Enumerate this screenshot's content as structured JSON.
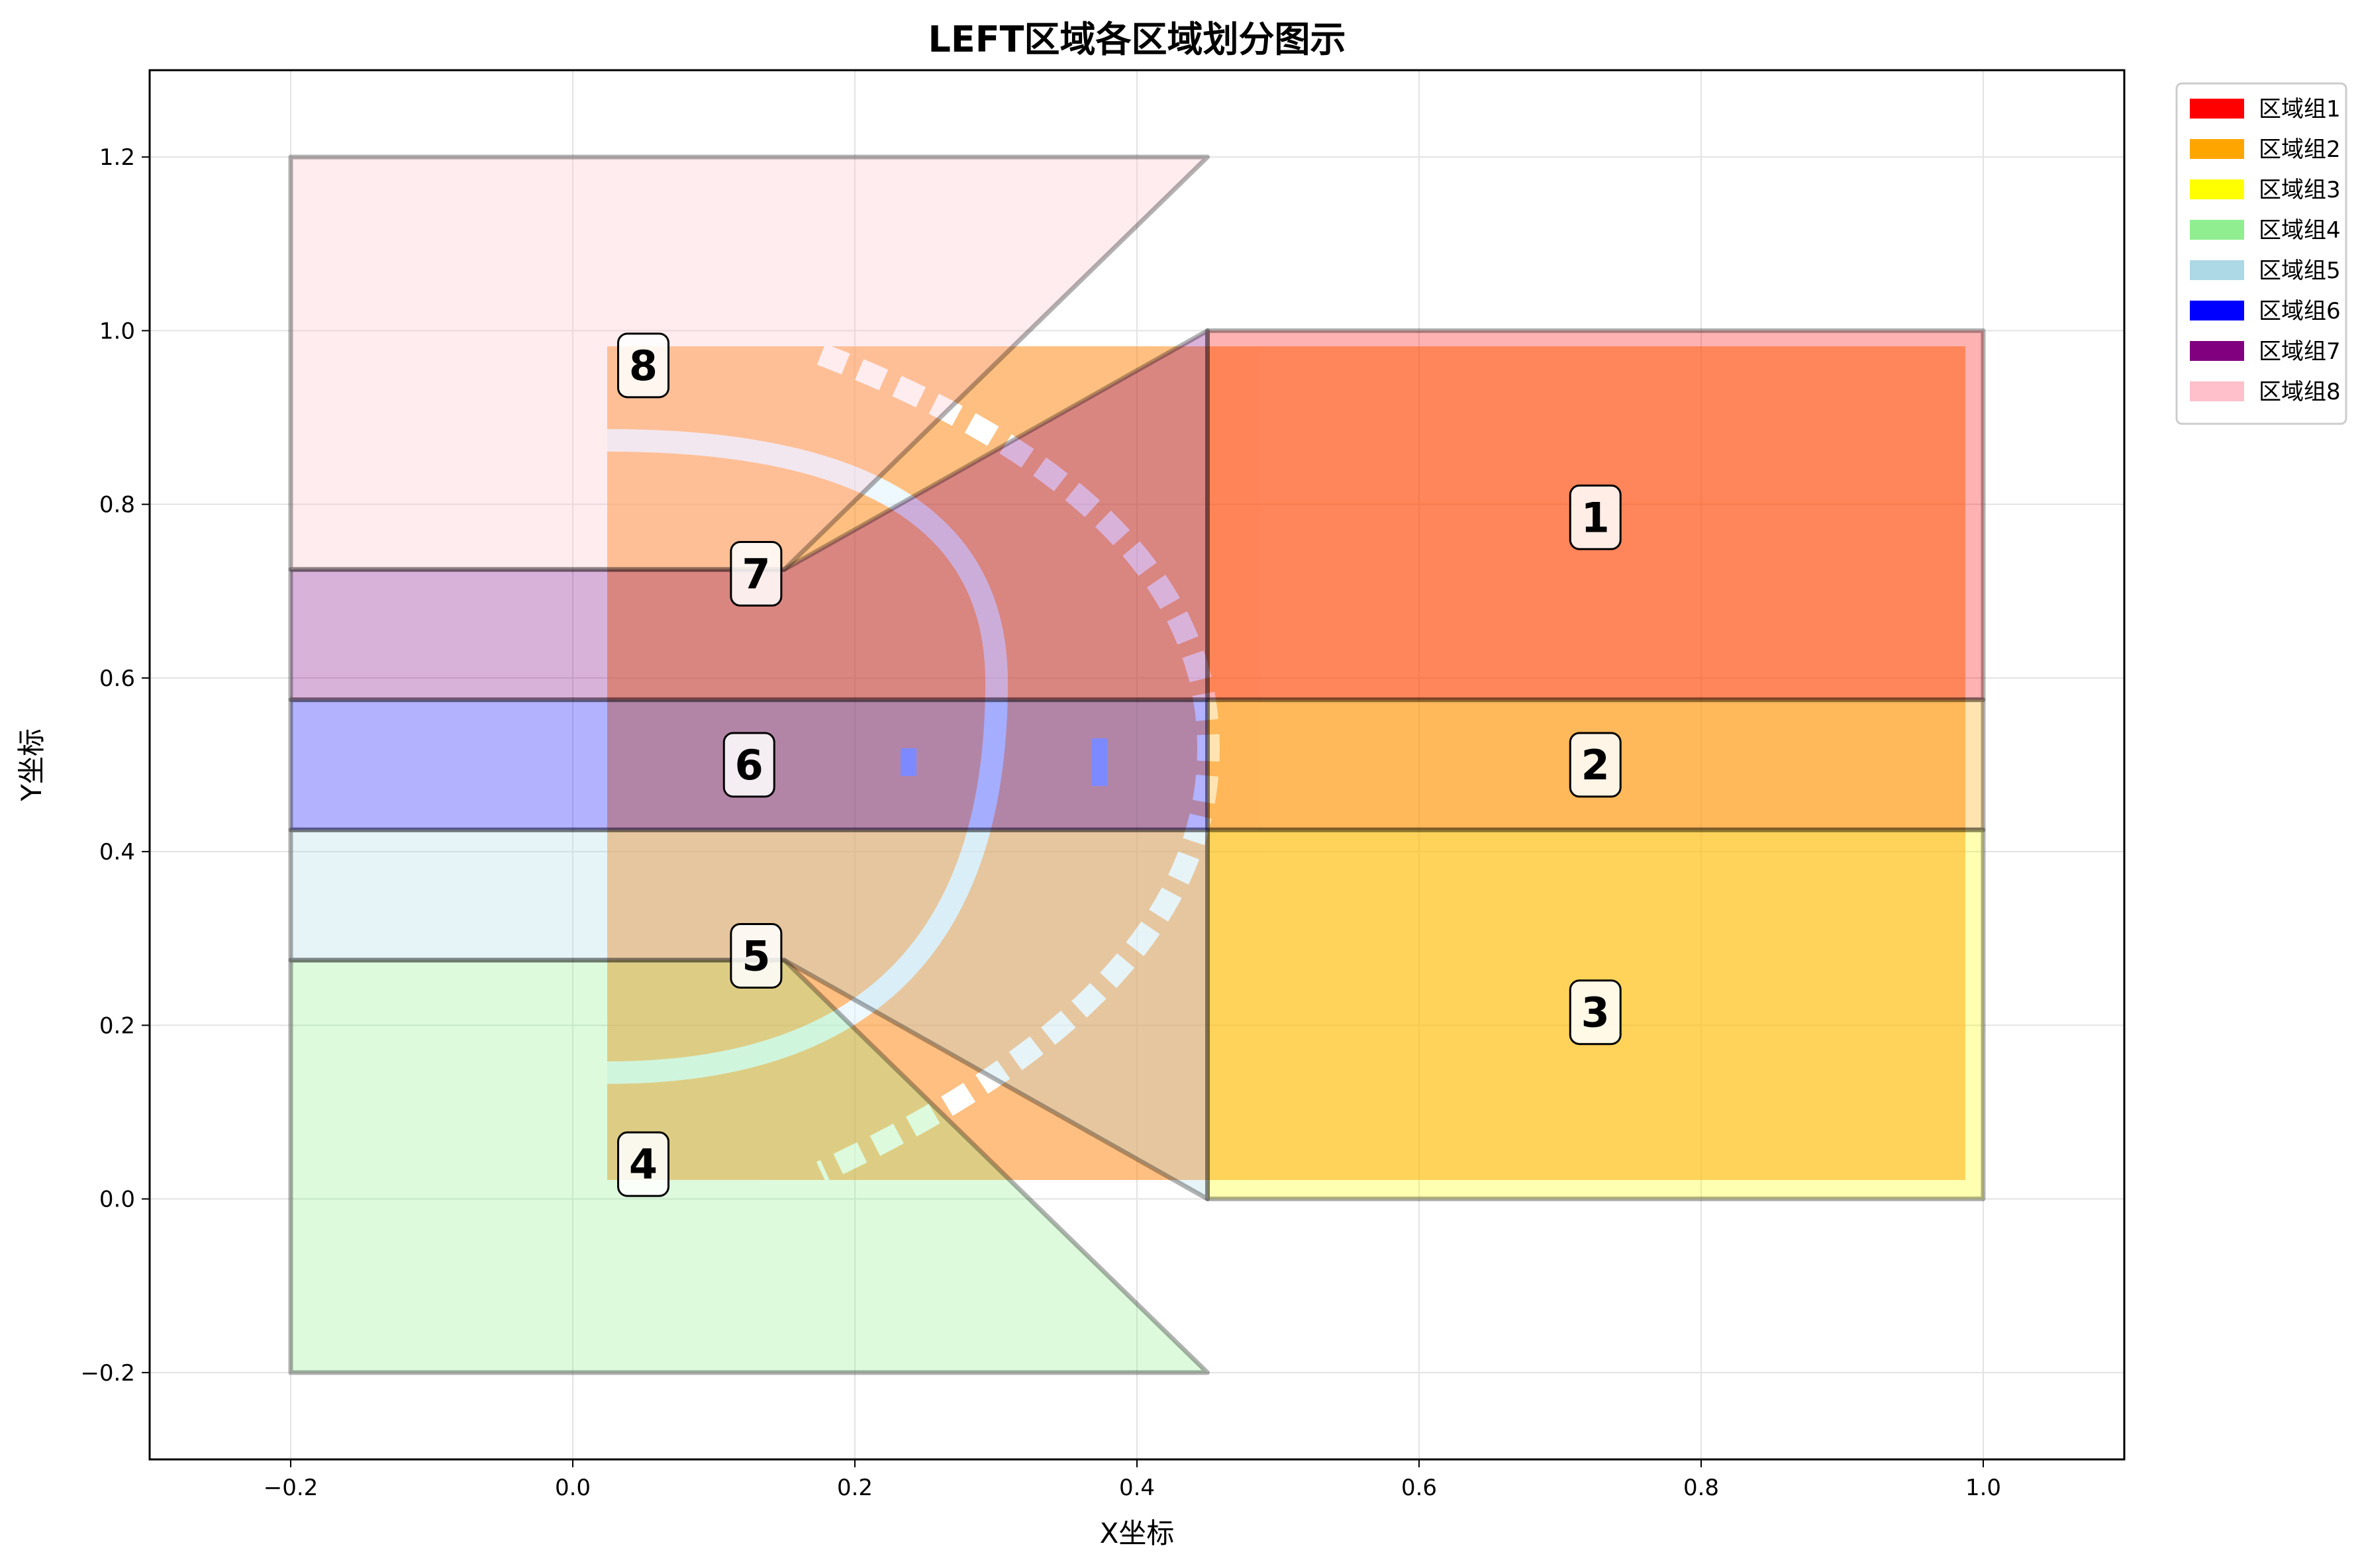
{
  "chart_data": {
    "type": "area",
    "title": "LEFT区域各区域划分图示",
    "xlabel": "X坐标",
    "ylabel": "Y坐标",
    "xlim": [
      -0.3,
      1.1
    ],
    "ylim": [
      -0.3,
      1.3
    ],
    "xticks": [
      -0.2,
      0.0,
      0.2,
      0.4,
      0.6,
      0.8,
      1.0
    ],
    "xtick_labels": [
      "−0.2",
      "0.0",
      "0.2",
      "0.4",
      "0.6",
      "0.8",
      "1.0"
    ],
    "yticks": [
      -0.2,
      0.0,
      0.2,
      0.4,
      0.6,
      0.8,
      1.0,
      1.2
    ],
    "ytick_labels": [
      "−0.2",
      "0.0",
      "0.2",
      "0.4",
      "0.6",
      "0.8",
      "1.0",
      "1.2"
    ],
    "grid": true,
    "legend_position": "outside-top-right",
    "legend": [
      {
        "label": "区域组1",
        "color": "#ff0000"
      },
      {
        "label": "区域组2",
        "color": "#ffa500"
      },
      {
        "label": "区域组3",
        "color": "#ffff00"
      },
      {
        "label": "区域组4",
        "color": "#90ee90"
      },
      {
        "label": "区域组5",
        "color": "#add8e6"
      },
      {
        "label": "区域组6",
        "color": "#0000ff"
      },
      {
        "label": "区域组7",
        "color": "#800080"
      },
      {
        "label": "区域组8",
        "color": "#ffc0cb"
      }
    ],
    "regions": [
      {
        "id": "1",
        "color": "#ff0000",
        "label_pos": [
          0.725,
          0.785
        ],
        "polygon": [
          [
            0.45,
            0.575
          ],
          [
            1.0,
            0.575
          ],
          [
            1.0,
            1.0
          ],
          [
            0.45,
            1.0
          ]
        ]
      },
      {
        "id": "2",
        "color": "#ffa500",
        "label_pos": [
          0.725,
          0.5
        ],
        "polygon": [
          [
            0.45,
            0.425
          ],
          [
            1.0,
            0.425
          ],
          [
            1.0,
            0.575
          ],
          [
            0.45,
            0.575
          ]
        ]
      },
      {
        "id": "3",
        "color": "#ffff00",
        "label_pos": [
          0.725,
          0.215
        ],
        "polygon": [
          [
            0.45,
            0.0
          ],
          [
            1.0,
            0.0
          ],
          [
            1.0,
            0.425
          ],
          [
            0.45,
            0.425
          ]
        ]
      },
      {
        "id": "4",
        "color": "#90ee90",
        "label_pos": [
          0.05,
          0.04
        ],
        "polygon": [
          [
            -0.2,
            -0.2
          ],
          [
            0.45,
            -0.2
          ],
          [
            0.15,
            0.275
          ],
          [
            -0.2,
            0.275
          ]
        ]
      },
      {
        "id": "5",
        "color": "#add8e6",
        "label_pos": [
          0.13,
          0.28
        ],
        "polygon": [
          [
            -0.2,
            0.275
          ],
          [
            0.15,
            0.275
          ],
          [
            0.45,
            0.0
          ],
          [
            0.45,
            0.425
          ],
          [
            -0.2,
            0.425
          ]
        ]
      },
      {
        "id": "6",
        "color": "#0000ff",
        "label_pos": [
          0.125,
          0.5
        ],
        "polygon": [
          [
            -0.2,
            0.425
          ],
          [
            0.45,
            0.425
          ],
          [
            0.45,
            0.575
          ],
          [
            -0.2,
            0.575
          ]
        ]
      },
      {
        "id": "7",
        "color": "#800080",
        "label_pos": [
          0.13,
          0.72
        ],
        "polygon": [
          [
            -0.2,
            0.575
          ],
          [
            0.45,
            0.575
          ],
          [
            0.45,
            1.0
          ],
          [
            0.15,
            0.725
          ],
          [
            -0.2,
            0.725
          ]
        ]
      },
      {
        "id": "8",
        "color": "#ffc0cb",
        "label_pos": [
          0.05,
          0.96
        ],
        "polygon": [
          [
            -0.2,
            0.725
          ],
          [
            0.15,
            0.725
          ],
          [
            0.45,
            1.2
          ],
          [
            -0.2,
            1.2
          ]
        ]
      }
    ]
  }
}
